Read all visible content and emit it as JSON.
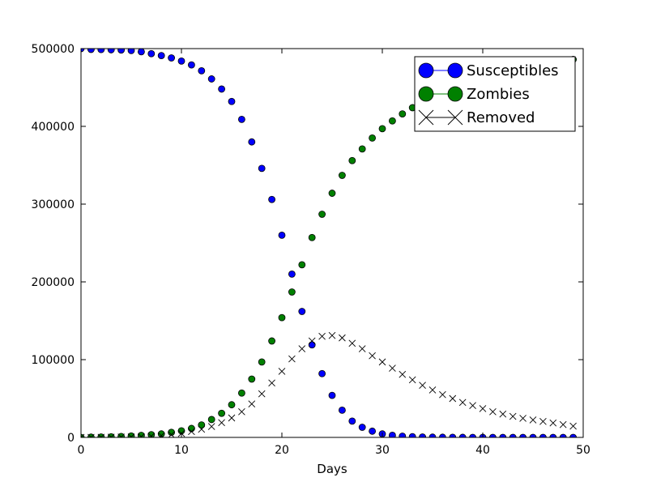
{
  "chart_data": {
    "type": "scatter",
    "title": "",
    "xlabel": "Days",
    "ylabel": "",
    "xlim": [
      0,
      50
    ],
    "ylim": [
      0,
      500000
    ],
    "xticks": [
      0,
      10,
      20,
      30,
      40,
      50
    ],
    "yticks": [
      0,
      100000,
      200000,
      300000,
      400000,
      500000
    ],
    "grid": false,
    "legend_position": "top-right",
    "series": [
      {
        "name": "Susceptibles",
        "color": "#0000ff",
        "marker": "circle",
        "x": [
          0,
          1,
          2,
          3,
          4,
          5,
          6,
          7,
          8,
          9,
          10,
          11,
          12,
          13,
          14,
          15,
          16,
          17,
          18,
          19,
          20,
          21,
          22,
          23,
          24,
          25,
          26,
          27,
          28,
          29,
          30,
          31,
          32,
          33,
          34,
          35,
          36,
          37,
          38,
          39,
          40,
          41,
          42,
          43,
          44,
          45,
          46,
          47,
          48,
          49
        ],
        "y": [
          500000,
          499000,
          498800,
          498500,
          498200,
          497500,
          496000,
          493500,
          491000,
          488000,
          484000,
          479000,
          471500,
          461000,
          448000,
          432000,
          409000,
          380000,
          346000,
          306000,
          260000,
          210000,
          162000,
          119000,
          82000,
          54000,
          35000,
          21000,
          13000,
          8000,
          4500,
          2700,
          1600,
          900,
          500,
          300,
          170,
          100,
          60,
          30,
          20,
          10,
          5,
          3,
          2,
          1,
          0,
          0,
          0,
          0
        ]
      },
      {
        "name": "Zombies",
        "color": "#008000",
        "marker": "circle",
        "x": [
          0,
          1,
          2,
          3,
          4,
          5,
          6,
          7,
          8,
          9,
          10,
          11,
          12,
          13,
          14,
          15,
          16,
          17,
          18,
          19,
          20,
          21,
          22,
          23,
          24,
          25,
          26,
          27,
          28,
          29,
          30,
          31,
          32,
          33,
          34,
          35,
          36,
          37,
          38,
          39,
          40,
          41,
          42,
          43,
          44,
          45,
          46,
          47,
          48,
          49
        ],
        "y": [
          0,
          300,
          500,
          800,
          1200,
          1800,
          2600,
          3500,
          4500,
          6500,
          8500,
          11500,
          16000,
          23000,
          31000,
          42000,
          57000,
          75000,
          97000,
          124000,
          154000,
          187000,
          222000,
          257000,
          287000,
          314000,
          337000,
          356000,
          371000,
          385000,
          397000,
          407000,
          416000,
          424000,
          431000,
          437000,
          443000,
          448000,
          453000,
          457000,
          461000,
          465000,
          468000,
          471000,
          474000,
          477000,
          479000,
          482000,
          484000,
          486000
        ]
      },
      {
        "name": "Removed",
        "color": "#000000",
        "marker": "x",
        "x": [
          0,
          1,
          2,
          3,
          4,
          5,
          6,
          7,
          8,
          9,
          10,
          11,
          12,
          13,
          14,
          15,
          16,
          17,
          18,
          19,
          20,
          21,
          22,
          23,
          24,
          25,
          26,
          27,
          28,
          29,
          30,
          31,
          32,
          33,
          34,
          35,
          36,
          37,
          38,
          39,
          40,
          41,
          42,
          43,
          44,
          45,
          46,
          47,
          48,
          49
        ],
        "y": [
          0,
          100,
          200,
          300,
          400,
          600,
          900,
          1500,
          2200,
          3500,
          5000,
          7500,
          10500,
          14000,
          19000,
          25000,
          33000,
          43000,
          56000,
          70000,
          85000,
          101000,
          114000,
          124000,
          130000,
          131000,
          128000,
          121000,
          114000,
          105000,
          97000,
          89000,
          81000,
          74000,
          67000,
          61000,
          55000,
          50000,
          45000,
          41000,
          37000,
          33000,
          30000,
          27000,
          24500,
          22500,
          20500,
          18500,
          16500,
          14500
        ]
      }
    ]
  }
}
